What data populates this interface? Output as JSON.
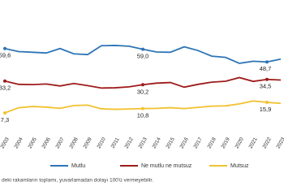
{
  "chart_data": {
    "type": "line",
    "x": [
      "2003",
      "2004",
      "2005",
      "2006",
      "2007",
      "2008",
      "2009",
      "2010",
      "2011",
      "2012",
      "2013",
      "2014",
      "2015",
      "2016",
      "2017",
      "2018",
      "2019",
      "2020",
      "2021",
      "2022",
      "2023"
    ],
    "ylim": [
      0,
      70
    ],
    "series": [
      {
        "name": "Mutlu",
        "color": "#2e75b6",
        "values": [
          59.6,
          57.1,
          56.6,
          56.0,
          59.6,
          55.3,
          54.7,
          61.9,
          62.1,
          61.5,
          59.0,
          56.8,
          56.6,
          61.0,
          58.0,
          53.4,
          52.4,
          47.6,
          49.3,
          48.7,
          51.0
        ],
        "value_labels": [
          "59,6",
          null,
          null,
          null,
          null,
          null,
          null,
          null,
          null,
          null,
          "59,0",
          null,
          null,
          null,
          null,
          null,
          null,
          null,
          null,
          "48,7",
          null
        ]
      },
      {
        "name": "Ne mutlu ne mutsuz",
        "color": "#9e1b1b",
        "values": [
          33.2,
          30.5,
          30.3,
          30.8,
          29.2,
          31.2,
          29.5,
          27.5,
          27.7,
          28.5,
          30.2,
          31.5,
          32.0,
          28.2,
          30.5,
          32.3,
          33.0,
          36.0,
          32.9,
          34.5,
          34.0
        ],
        "value_labels": [
          "33,2",
          null,
          null,
          null,
          null,
          null,
          null,
          null,
          null,
          null,
          "30,2",
          null,
          null,
          null,
          null,
          null,
          null,
          null,
          null,
          "34,5",
          null
        ]
      },
      {
        "name": "Mutsuz",
        "color": "#f2c12e",
        "values": [
          7.3,
          11.5,
          12.5,
          12.0,
          11.0,
          13.3,
          13.6,
          10.6,
          10.2,
          10.5,
          10.8,
          11.0,
          11.5,
          10.8,
          11.8,
          12.8,
          13.0,
          14.6,
          17.0,
          15.9,
          15.0
        ],
        "value_labels": [
          "7,3",
          null,
          null,
          null,
          null,
          null,
          null,
          null,
          null,
          null,
          "10,8",
          null,
          null,
          null,
          null,
          null,
          null,
          null,
          null,
          "15,9",
          null
        ]
      }
    ],
    "footnote": "deki rakamların toplamı, yuvarlamadan dolayı 100'ü vermeyebilir."
  }
}
